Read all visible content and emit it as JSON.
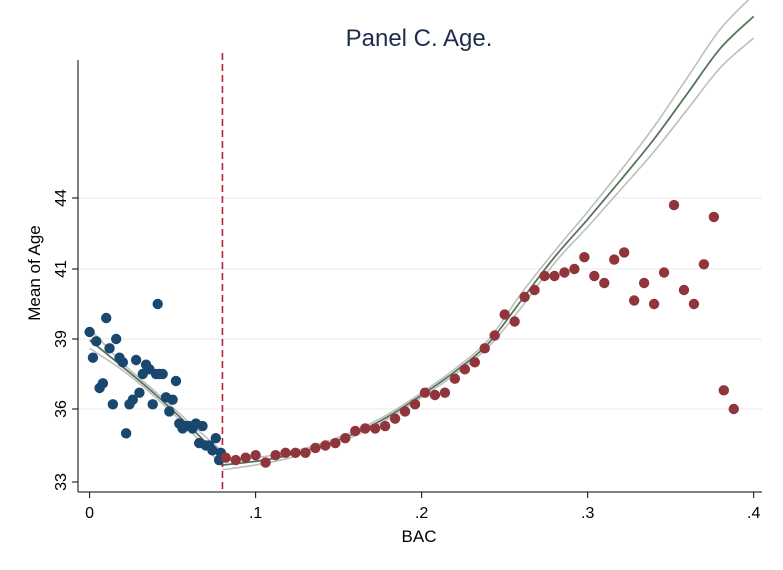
{
  "chart_data": {
    "type": "scatter",
    "title": "Panel C. Age.",
    "xlabel": "BAC",
    "ylabel": "Mean of Age",
    "xlim": [
      -0.007,
      0.405
    ],
    "ylim": [
      33,
      50.3
    ],
    "x_ticks": [
      {
        "value": 0,
        "label": "0"
      },
      {
        "value": 0.1,
        "label": ".1"
      },
      {
        "value": 0.2,
        "label": ".2"
      },
      {
        "value": 0.3,
        "label": ".3"
      },
      {
        "value": 0.4,
        "label": ".4"
      }
    ],
    "y_ticks": [
      {
        "value": 33,
        "label": "33"
      },
      {
        "value": 36,
        "label": "36"
      },
      {
        "value": 39,
        "label": "39"
      },
      {
        "value": 41,
        "label": "41"
      },
      {
        "value": 44,
        "label": "44"
      }
    ],
    "gridlines_y": [
      36,
      39,
      41,
      44
    ],
    "cutoff": 0.08,
    "colors": {
      "left_points": "#1a476f",
      "right_points": "#90353b",
      "fit_line": "#55755a",
      "ci_lines": "#bebebe",
      "cutoff_line": "#b32336",
      "gridline": "#eaeaea",
      "title": "#1f2d4d"
    },
    "series": [
      {
        "points": [
          [
            0.0,
            39.2
          ],
          [
            0.002,
            38.2
          ],
          [
            0.004,
            38.9
          ],
          [
            0.006,
            36.9
          ],
          [
            0.008,
            37.1
          ],
          [
            0.01,
            39.6
          ],
          [
            0.012,
            38.6
          ],
          [
            0.014,
            36.2
          ],
          [
            0.016,
            39.0
          ],
          [
            0.018,
            38.2
          ],
          [
            0.02,
            38.0
          ],
          [
            0.022,
            35.0
          ],
          [
            0.024,
            36.2
          ],
          [
            0.026,
            36.4
          ],
          [
            0.028,
            38.1
          ],
          [
            0.03,
            36.7
          ],
          [
            0.032,
            37.5
          ],
          [
            0.034,
            37.9
          ],
          [
            0.036,
            37.7
          ],
          [
            0.038,
            36.2
          ],
          [
            0.04,
            37.5
          ],
          [
            0.041,
            40.0
          ],
          [
            0.042,
            37.5
          ],
          [
            0.044,
            37.5
          ],
          [
            0.046,
            36.5
          ],
          [
            0.048,
            35.9
          ],
          [
            0.05,
            36.4
          ],
          [
            0.052,
            37.2
          ],
          [
            0.054,
            35.4
          ],
          [
            0.056,
            35.2
          ],
          [
            0.058,
            35.3
          ],
          [
            0.06,
            35.3
          ],
          [
            0.062,
            35.2
          ],
          [
            0.064,
            35.4
          ],
          [
            0.066,
            34.6
          ],
          [
            0.068,
            35.3
          ],
          [
            0.07,
            34.5
          ],
          [
            0.072,
            34.5
          ],
          [
            0.074,
            34.3
          ],
          [
            0.076,
            34.8
          ],
          [
            0.078,
            33.9
          ],
          [
            0.079,
            34.2
          ]
        ]
      },
      {
        "points": [
          [
            0.082,
            34.0
          ],
          [
            0.088,
            33.9
          ],
          [
            0.094,
            34.0
          ],
          [
            0.1,
            34.1
          ],
          [
            0.106,
            33.8
          ],
          [
            0.112,
            34.1
          ],
          [
            0.118,
            34.2
          ],
          [
            0.124,
            34.2
          ],
          [
            0.13,
            34.2
          ],
          [
            0.136,
            34.4
          ],
          [
            0.142,
            34.5
          ],
          [
            0.148,
            34.6
          ],
          [
            0.154,
            34.8
          ],
          [
            0.16,
            35.1
          ],
          [
            0.166,
            35.2
          ],
          [
            0.172,
            35.2
          ],
          [
            0.178,
            35.3
          ],
          [
            0.184,
            35.6
          ],
          [
            0.19,
            35.9
          ],
          [
            0.196,
            36.2
          ],
          [
            0.202,
            36.7
          ],
          [
            0.208,
            36.6
          ],
          [
            0.214,
            36.7
          ],
          [
            0.22,
            37.3
          ],
          [
            0.226,
            37.7
          ],
          [
            0.232,
            38.0
          ],
          [
            0.238,
            38.6
          ],
          [
            0.244,
            39.1
          ],
          [
            0.25,
            39.7
          ],
          [
            0.256,
            39.5
          ],
          [
            0.262,
            40.2
          ],
          [
            0.268,
            40.4
          ],
          [
            0.274,
            40.8
          ],
          [
            0.28,
            40.8
          ],
          [
            0.286,
            40.9
          ],
          [
            0.292,
            41.0
          ],
          [
            0.298,
            41.5
          ],
          [
            0.304,
            40.8
          ],
          [
            0.31,
            40.6
          ],
          [
            0.316,
            41.4
          ],
          [
            0.322,
            41.7
          ],
          [
            0.328,
            40.1
          ],
          [
            0.334,
            40.6
          ],
          [
            0.34,
            40.0
          ],
          [
            0.346,
            40.9
          ],
          [
            0.352,
            43.7
          ],
          [
            0.358,
            40.4
          ],
          [
            0.364,
            40.0
          ],
          [
            0.37,
            41.2
          ],
          [
            0.376,
            43.2
          ],
          [
            0.382,
            36.8
          ],
          [
            0.388,
            36.0
          ]
        ]
      }
    ],
    "fit": {
      "left": [
        [
          0.0,
          38.95
        ],
        [
          0.02,
          37.8
        ],
        [
          0.04,
          36.6
        ],
        [
          0.06,
          35.3
        ],
        [
          0.08,
          33.95
        ]
      ],
      "right": [
        [
          0.08,
          33.7
        ],
        [
          0.1,
          33.85
        ],
        [
          0.12,
          34.1
        ],
        [
          0.14,
          34.5
        ],
        [
          0.16,
          35.0
        ],
        [
          0.18,
          35.7
        ],
        [
          0.2,
          36.6
        ],
        [
          0.22,
          37.6
        ],
        [
          0.24,
          38.8
        ],
        [
          0.26,
          40.1
        ],
        [
          0.28,
          41.5
        ],
        [
          0.3,
          43.1
        ],
        [
          0.32,
          44.8
        ],
        [
          0.34,
          46.6
        ],
        [
          0.36,
          48.6
        ],
        [
          0.38,
          50.6
        ],
        [
          0.4,
          52.0
        ]
      ],
      "ci_half_width_left": [
        0.35,
        0.15,
        0.12,
        0.15,
        0.3
      ],
      "ci_half_width_right": [
        0.2,
        0.15,
        0.12,
        0.1,
        0.1,
        0.1,
        0.1,
        0.12,
        0.15,
        0.2,
        0.25,
        0.32,
        0.42,
        0.55,
        0.7,
        0.85,
        0.95
      ]
    }
  }
}
